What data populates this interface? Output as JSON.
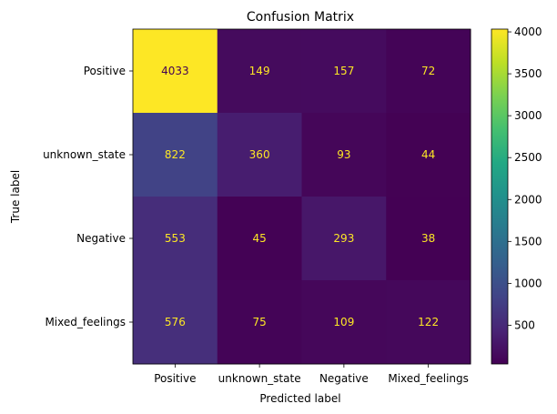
{
  "chart_data": {
    "type": "heatmap",
    "title": "Confusion Matrix",
    "xlabel": "Predicted label",
    "ylabel": "True label",
    "row_labels": [
      "Positive",
      "unknown_state",
      "Negative",
      "Mixed_feelings"
    ],
    "col_labels": [
      "Positive",
      "unknown_state",
      "Negative",
      "Mixed_feelings"
    ],
    "values": [
      [
        4033,
        149,
        157,
        72
      ],
      [
        822,
        360,
        93,
        44
      ],
      [
        553,
        45,
        293,
        38
      ],
      [
        576,
        75,
        109,
        122
      ]
    ],
    "colormap": "viridis",
    "colorbar": {
      "min": 38,
      "max": 4033,
      "ticks": [
        500,
        1000,
        1500,
        2000,
        2500,
        3000,
        3500,
        4000
      ],
      "tick_labels": [
        "500",
        "1000",
        "1500",
        "2000",
        "2500",
        "3000",
        "3500",
        "4000"
      ]
    },
    "text_color_light": "#fde725",
    "text_color_dark": "#440154"
  }
}
